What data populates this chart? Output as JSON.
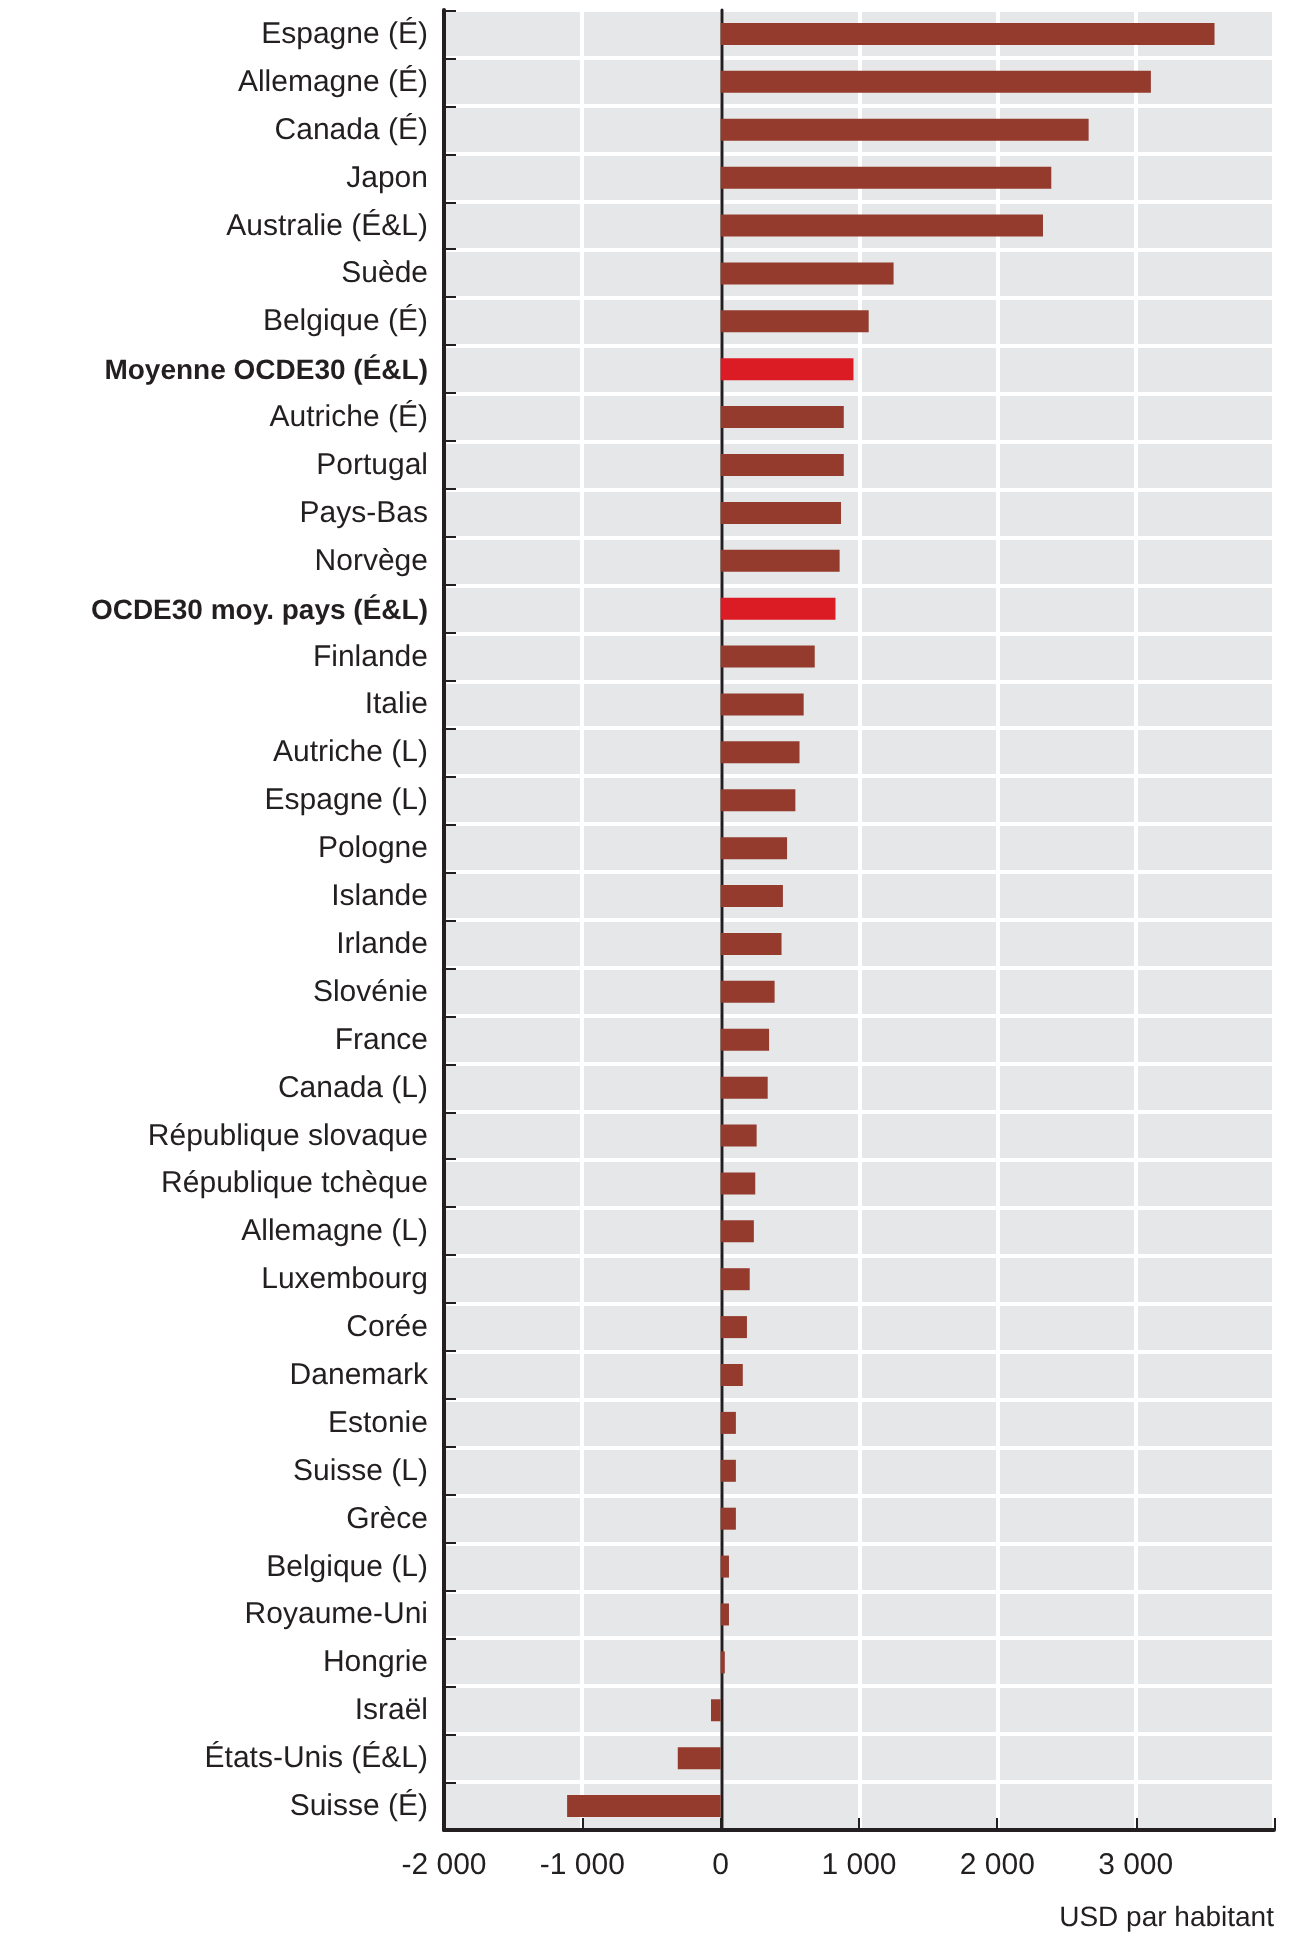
{
  "chart_data": {
    "type": "bar",
    "orientation": "horizontal",
    "xlabel": "USD par habitant",
    "categories": [
      "Espagne (É)",
      "Allemagne (É)",
      "Canada (É)",
      "Japon",
      "Australie (É&L)",
      "Suède",
      "Belgique (É)",
      "Moyenne OCDE30 (É&L)",
      "Autriche (É)",
      "Portugal",
      "Pays-Bas",
      "Norvège",
      "OCDE30 moy. pays (É&L)",
      "Finlande",
      "Italie",
      "Autriche (L)",
      "Espagne (L)",
      "Pologne",
      "Islande",
      "Irlande",
      "Slovénie",
      "France",
      "Canada (L)",
      "République slovaque",
      "République tchèque",
      "Allemagne (L)",
      "Luxembourg",
      "Corée",
      "Danemark",
      "Estonie",
      "Suisse (L)",
      "Grèce",
      "Belgique (L)",
      "Royaume-Uni",
      "Hongrie",
      "Israël",
      "États-Unis (É&L)",
      "Suisse (É)"
    ],
    "values": [
      3570,
      3110,
      2660,
      2390,
      2330,
      1250,
      1070,
      960,
      890,
      890,
      870,
      860,
      830,
      680,
      600,
      570,
      540,
      480,
      450,
      440,
      390,
      350,
      340,
      260,
      250,
      240,
      210,
      190,
      160,
      110,
      110,
      110,
      60,
      60,
      30,
      -70,
      -310,
      -1110
    ],
    "colors": [
      "#943b2e",
      "#943b2e",
      "#943b2e",
      "#943b2e",
      "#943b2e",
      "#943b2e",
      "#943b2e",
      "#dc1c24",
      "#943b2e",
      "#943b2e",
      "#943b2e",
      "#943b2e",
      "#dc1c24",
      "#943b2e",
      "#943b2e",
      "#943b2e",
      "#943b2e",
      "#943b2e",
      "#943b2e",
      "#943b2e",
      "#943b2e",
      "#943b2e",
      "#943b2e",
      "#943b2e",
      "#943b2e",
      "#943b2e",
      "#943b2e",
      "#943b2e",
      "#943b2e",
      "#943b2e",
      "#943b2e",
      "#943b2e",
      "#943b2e",
      "#943b2e",
      "#943b2e",
      "#943b2e",
      "#943b2e",
      "#943b2e"
    ],
    "xlim": [
      -2000,
      4000
    ],
    "xticks": [
      {
        "value": -2000,
        "label": "-2 000"
      },
      {
        "value": -1000,
        "label": "-1 000"
      },
      0,
      {
        "value": 1000,
        "label": "1 000"
      },
      {
        "value": 2000,
        "label": "2 000"
      },
      {
        "value": 3000,
        "label": "3 000"
      },
      {
        "value": 4000,
        "label": null
      }
    ],
    "grid": true
  }
}
